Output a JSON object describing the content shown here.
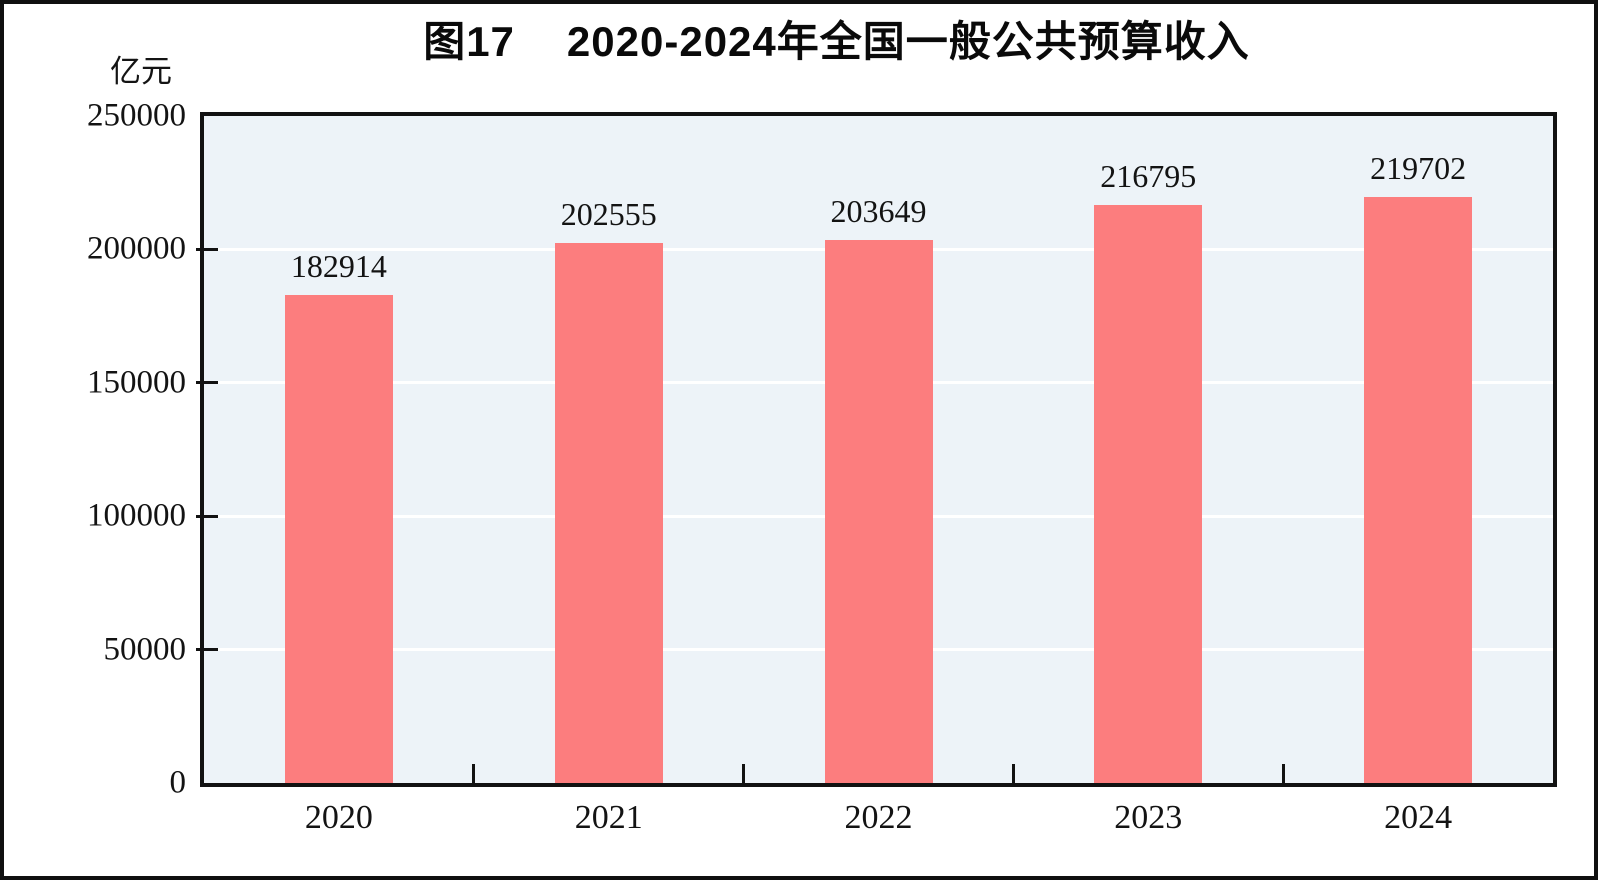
{
  "page": {
    "title_prefix": "图17",
    "title_text": "2020-2024年全国一般公共预算收入",
    "unit_label": "亿元"
  },
  "chart_data": {
    "type": "bar",
    "title": "图17 2020-2024年全国一般公共预算收入",
    "unit_label": "亿元",
    "categories": [
      "2020",
      "2021",
      "2022",
      "2023",
      "2024"
    ],
    "values": [
      182914,
      202555,
      203649,
      216795,
      219702
    ],
    "series": [
      {
        "name": "全国一般公共预算收入",
        "values": [
          182914,
          202555,
          203649,
          216795,
          219702
        ]
      }
    ],
    "data_labels": [
      "182914",
      "202555",
      "203649",
      "216795",
      "219702"
    ],
    "xlabel": "",
    "ylabel": "亿元",
    "ylim": [
      0,
      250000
    ],
    "ytick_step": 50000,
    "yticks": [
      0,
      50000,
      100000,
      150000,
      200000,
      250000
    ],
    "ytick_labels": [
      "0",
      "50000",
      "100000",
      "150000",
      "200000",
      "250000"
    ],
    "grid": true,
    "grid_orientation": "horizontal",
    "legend_position": "none",
    "colors": {
      "bar_fill": "#fc7d7e",
      "plot_background": "#edf3f8",
      "gridline": "#ffffff",
      "axis": "#121212",
      "text": "#131313"
    }
  }
}
